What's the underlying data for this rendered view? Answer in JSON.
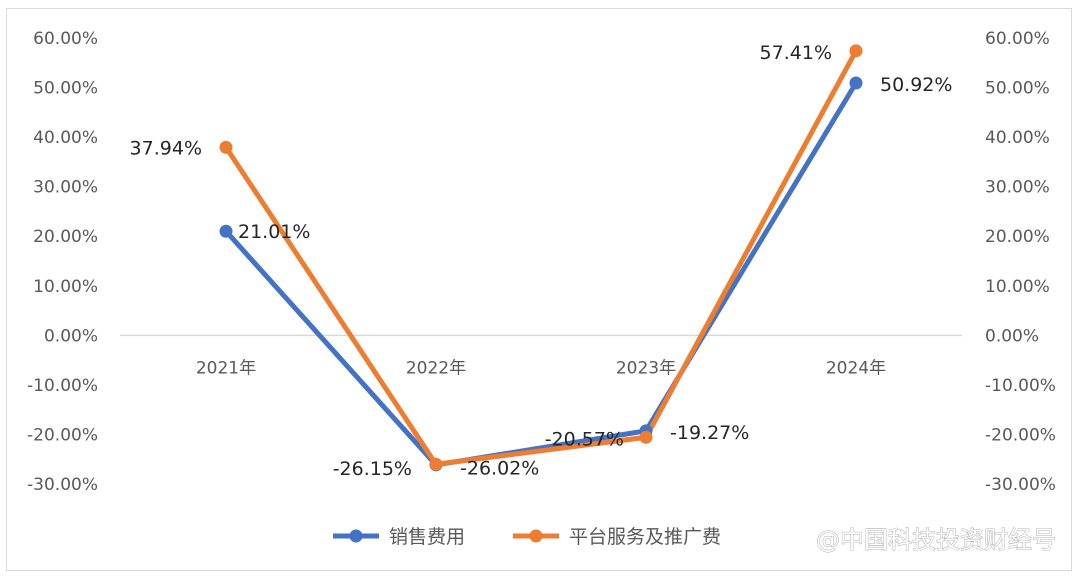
{
  "chart_data": {
    "type": "line",
    "categories": [
      "2021年",
      "2022年",
      "2023年",
      "2024年"
    ],
    "series": [
      {
        "name": "销售费用",
        "values": [
          21.01,
          -26.15,
          -19.27,
          50.92
        ],
        "labels": [
          "21.01%",
          "-26.15%",
          "-19.27%",
          "50.92%"
        ],
        "color": "#4472C4"
      },
      {
        "name": "平台服务及推广费",
        "values": [
          37.94,
          -26.02,
          -20.57,
          57.41
        ],
        "labels": [
          "37.94%",
          "-26.02%",
          "-20.57%",
          "57.41%"
        ],
        "color": "#ED7D31"
      }
    ],
    "yticks": [
      "60.00%",
      "50.00%",
      "40.00%",
      "30.00%",
      "20.00%",
      "10.00%",
      "0.00%",
      "-10.00%",
      "-20.00%",
      "-30.00%"
    ],
    "ylim": [
      -30,
      60
    ],
    "grid": false,
    "legend": "bottom"
  },
  "watermark": "@中国科技投资财经号"
}
